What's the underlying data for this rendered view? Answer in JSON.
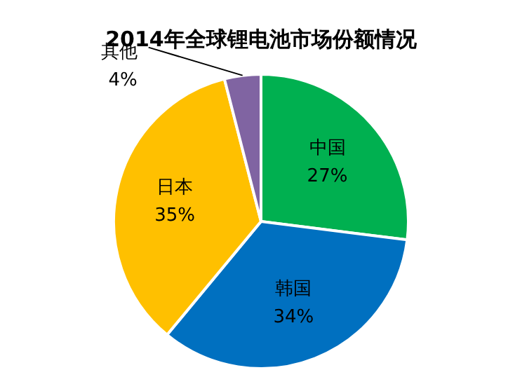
{
  "chart_data": {
    "type": "pie",
    "title": "2014年全球锂电池市场份额情况",
    "categories": [
      "中国",
      "韩国",
      "日本",
      "其他"
    ],
    "values": [
      27,
      34,
      35,
      4
    ],
    "value_labels": [
      "27%",
      "34%",
      "35%",
      "4%"
    ],
    "colors": [
      "#00b050",
      "#0070c0",
      "#ffc000",
      "#8064a2"
    ],
    "legend": false
  }
}
